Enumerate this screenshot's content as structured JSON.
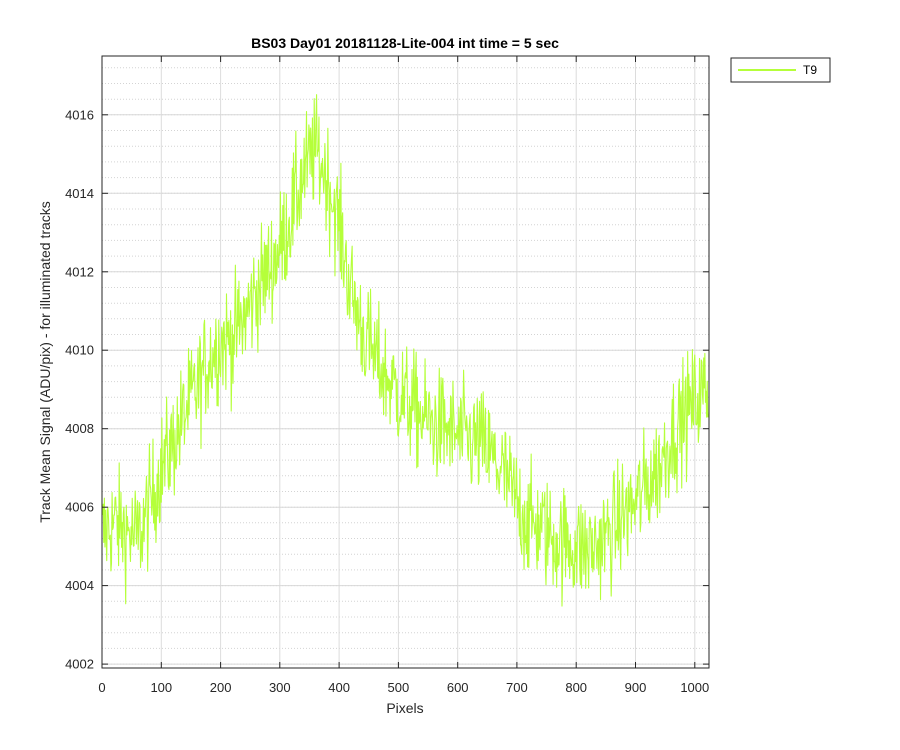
{
  "chart_data": {
    "type": "line",
    "title": "BS03 Day01 20181128-Lite-004 int time = 5 sec",
    "xlabel": "Pixels",
    "ylabel": "Track Mean Signal (ADU/pix) - for illuminated tracks",
    "xlim": [
      0,
      1024
    ],
    "ylim": [
      4001.9,
      4017.5
    ],
    "xticks": [
      0,
      100,
      200,
      300,
      400,
      500,
      600,
      700,
      800,
      900,
      1000
    ],
    "yticks": [
      4002,
      4004,
      4006,
      4008,
      4010,
      4012,
      4014,
      4016
    ],
    "grid": true,
    "minor_grid": true,
    "legend_position": "outside-top-right",
    "series": [
      {
        "name": "T9",
        "color": "#b5ff3a",
        "x": [
          0,
          20,
          40,
          60,
          80,
          100,
          120,
          140,
          160,
          180,
          200,
          220,
          240,
          260,
          280,
          300,
          320,
          340,
          360,
          380,
          400,
          420,
          440,
          460,
          480,
          500,
          520,
          540,
          560,
          580,
          600,
          620,
          640,
          660,
          680,
          700,
          720,
          740,
          760,
          780,
          800,
          820,
          840,
          860,
          880,
          900,
          920,
          940,
          960,
          980,
          1000,
          1020
        ],
        "y": [
          4005.3,
          4005.6,
          4005.4,
          4005.2,
          4006.0,
          4007.0,
          4007.6,
          4008.4,
          4009.0,
          4009.8,
          4010.2,
          4010.3,
          4010.8,
          4011.5,
          4012.0,
          4012.6,
          4013.5,
          4014.5,
          4015.1,
          4014.4,
          4013.2,
          4011.5,
          4010.5,
          4009.8,
          4009.3,
          4008.9,
          4008.6,
          4008.3,
          4008.1,
          4008.0,
          4007.8,
          4007.7,
          4007.6,
          4007.2,
          4006.8,
          4006.1,
          4005.6,
          4005.5,
          4005.2,
          4005.1,
          4005.0,
          4004.9,
          4005.1,
          4005.4,
          4005.8,
          4006.1,
          4006.6,
          4007.0,
          4007.8,
          4008.3,
          4008.7,
          4009.0
        ]
      }
    ]
  }
}
